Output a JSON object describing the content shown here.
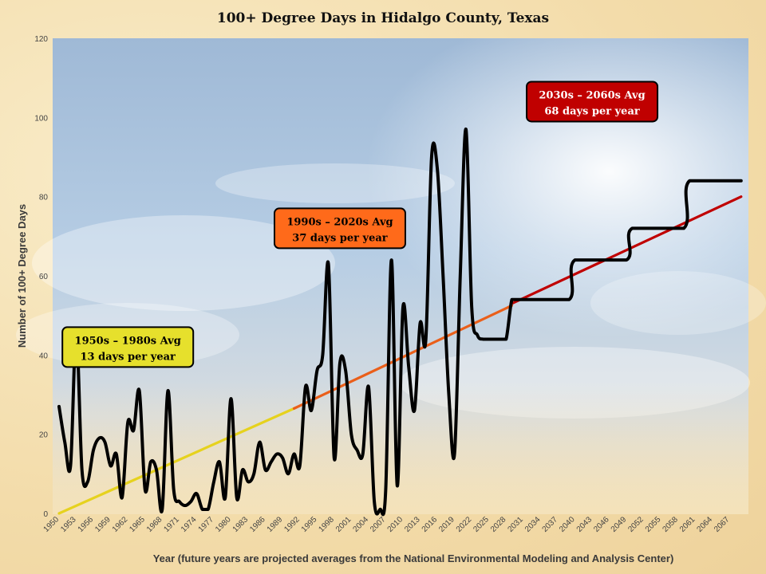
{
  "chart_data": {
    "type": "line",
    "title": "100+ Degree Days in Hidalgo County, Texas",
    "xlabel": "Year (future years are projected averages from the National Environmental Modeling and Analysis Center)",
    "ylabel": "Number of 100+ Degree Days",
    "xlim": [
      1950,
      2070
    ],
    "ylim": [
      0,
      120
    ],
    "y_ticks": [
      0,
      20,
      40,
      60,
      80,
      100,
      120
    ],
    "x_ticks": [
      1950,
      1953,
      1956,
      1959,
      1962,
      1965,
      1968,
      1971,
      1974,
      1977,
      1980,
      1983,
      1986,
      1989,
      1992,
      1995,
      1998,
      2001,
      2004,
      2007,
      2010,
      2013,
      2016,
      2019,
      2022,
      2025,
      2028,
      2031,
      2034,
      2037,
      2040,
      2043,
      2046,
      2049,
      2052,
      2055,
      2058,
      2061,
      2064,
      2067
    ],
    "grid": false,
    "series": [
      {
        "color": "#000000",
        "x": [
          1950,
          1951,
          1952,
          1953,
          1954,
          1955,
          1956,
          1957,
          1958,
          1959,
          1960,
          1961,
          1962,
          1963,
          1964,
          1965,
          1966,
          1967,
          1968,
          1969,
          1970,
          1971,
          1972,
          1973,
          1974,
          1975,
          1976,
          1977,
          1978,
          1979,
          1980,
          1981,
          1982,
          1983,
          1984,
          1985,
          1986,
          1987,
          1988,
          1989,
          1990,
          1991,
          1992,
          1993,
          1994,
          1995,
          1996,
          1997,
          1998,
          1999,
          2000,
          2001,
          2002,
          2003,
          2004,
          2005,
          2006,
          2007,
          2008,
          2009,
          2010,
          2011,
          2012,
          2013,
          2014,
          2015,
          2016,
          2017,
          2018,
          2019,
          2020,
          2021,
          2022,
          2023,
          2024,
          2025,
          2026,
          2027,
          2028,
          2029,
          2030,
          2031,
          2039,
          2040,
          2049,
          2050,
          2059,
          2060,
          2069
        ],
        "values": [
          27,
          18,
          12,
          46,
          11,
          8,
          16,
          19,
          18,
          12,
          15,
          4,
          23,
          21,
          31,
          6,
          13,
          11,
          1,
          31,
          6,
          3,
          2,
          3,
          5,
          1,
          1,
          8,
          13,
          4,
          29,
          4,
          11,
          8,
          10,
          18,
          11,
          13,
          15,
          14,
          10,
          15,
          12,
          32,
          26,
          36,
          40,
          63,
          14,
          38,
          36,
          20,
          16,
          15,
          32,
          3,
          1,
          6,
          64,
          7,
          52,
          37,
          26,
          48,
          44,
          90,
          87,
          60,
          30,
          15,
          60,
          97,
          52,
          45,
          44,
          44,
          44,
          44,
          44,
          54,
          54,
          54,
          54,
          64,
          64,
          72,
          72,
          84,
          84
        ]
      }
    ],
    "trend_segments": [
      {
        "color": "#e6d21e",
        "x": [
          1950,
          1991
        ],
        "values": [
          0,
          26.5
        ]
      },
      {
        "color": "#ea5f1a",
        "x": [
          1991,
          2029
        ],
        "values": [
          26.5,
          52.5
        ]
      },
      {
        "color": "#c00000",
        "x": [
          2029,
          2069
        ],
        "values": [
          53,
          80
        ]
      }
    ],
    "annotations": [
      {
        "line1": "1950s – 1980s Avg",
        "line2": "13 days per year",
        "fill": "#e6e02c",
        "text_color": "#000000",
        "anchor_x": 1962,
        "anchor_y": 42
      },
      {
        "line1": "1990s – 2020s Avg",
        "line2": "37 days per year",
        "fill": "#ff6a1a",
        "text_color": "#000000",
        "anchor_x": 1999,
        "anchor_y": 72
      },
      {
        "line1": "2030s – 2060s Avg",
        "line2": "68 days per year",
        "fill": "#c00000",
        "text_color": "#ffffff",
        "anchor_x": 2043,
        "anchor_y": 104
      }
    ]
  }
}
